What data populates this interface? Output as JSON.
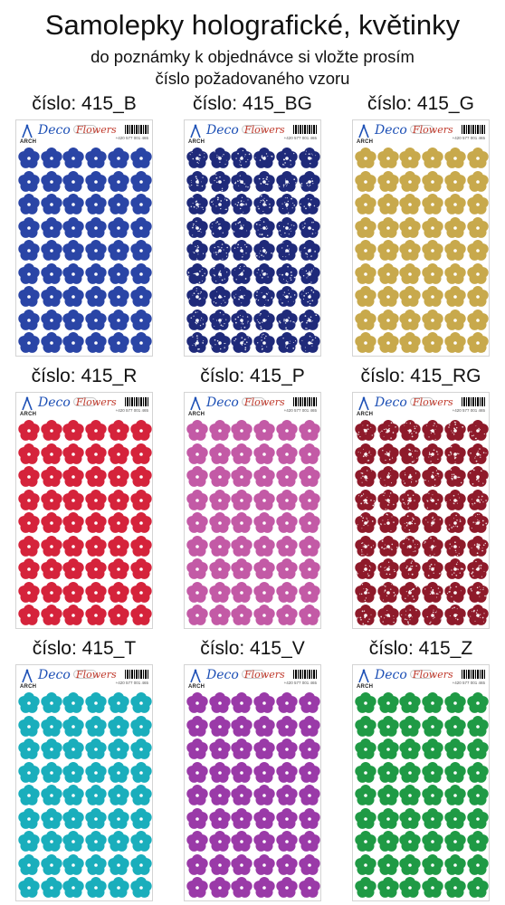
{
  "header": {
    "title": "Samolepky holografické, květinky",
    "subtitle_line1": "do poznámky k objednávce si vložte prosím",
    "subtitle_line2": "číslo požadovaného vzoru"
  },
  "sheet_labels": {
    "brand": "ARCH",
    "deco": "Deco",
    "flowers": "Flowers",
    "phone": "+420 577 001 465",
    "code": "415"
  },
  "products": [
    {
      "caption": "číslo: 415_B",
      "color": "#2a45a6",
      "glitter": false
    },
    {
      "caption": "číslo: 415_BG",
      "color": "#1f2a7a",
      "glitter": true
    },
    {
      "caption": "číslo: 415_G",
      "color": "#c8a94c",
      "glitter": false
    },
    {
      "caption": "číslo: 415_R",
      "color": "#d5233b",
      "glitter": false
    },
    {
      "caption": "číslo: 415_P",
      "color": "#c35aa6",
      "glitter": false
    },
    {
      "caption": "číslo: 415_RG",
      "color": "#8e1a2a",
      "glitter": true
    },
    {
      "caption": "číslo: 415_T",
      "color": "#1aaebc",
      "glitter": false
    },
    {
      "caption": "číslo: 415_V",
      "color": "#9a3aa8",
      "glitter": false
    },
    {
      "caption": "číslo: 415_Z",
      "color": "#1f9a45",
      "glitter": false
    }
  ]
}
